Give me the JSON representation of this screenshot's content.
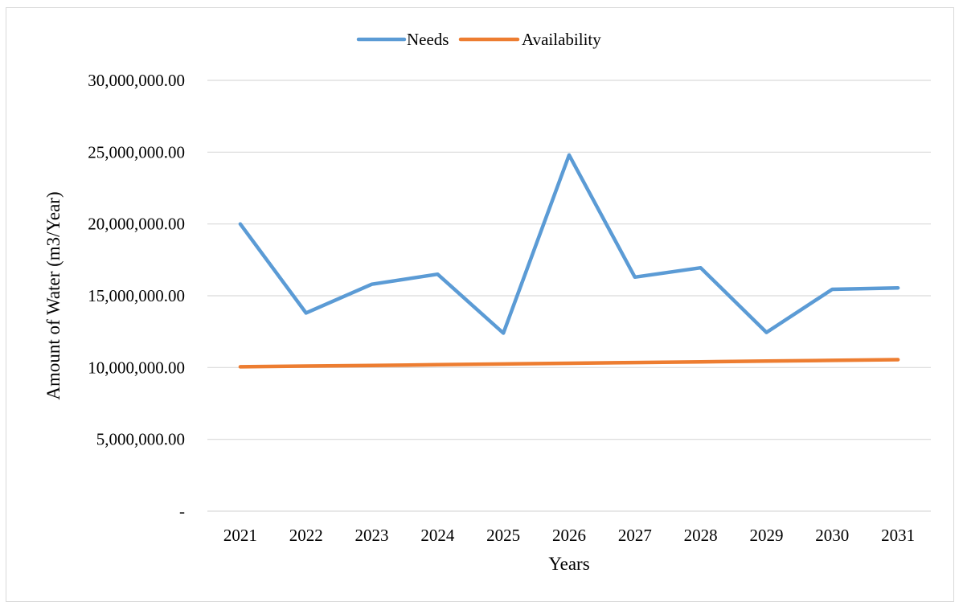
{
  "chart_data": {
    "type": "line",
    "title": "",
    "xlabel": "Years",
    "ylabel": "Amount of Water (m3/Year)",
    "categories": [
      "2021",
      "2022",
      "2023",
      "2024",
      "2025",
      "2026",
      "2027",
      "2028",
      "2029",
      "2030",
      "2031"
    ],
    "ylim": [
      0,
      30000000
    ],
    "y_ticks": [
      {
        "value": 0,
        "label": "-"
      },
      {
        "value": 5000000,
        "label": "5,000,000.00"
      },
      {
        "value": 10000000,
        "label": "10,000,000.00"
      },
      {
        "value": 15000000,
        "label": "15,000,000.00"
      },
      {
        "value": 20000000,
        "label": "20,000,000.00"
      },
      {
        "value": 25000000,
        "label": "25,000,000.00"
      },
      {
        "value": 30000000,
        "label": "30,000,000.00"
      }
    ],
    "grid": true,
    "legend_position": "top",
    "series": [
      {
        "name": "Needs",
        "color": "#5B9BD5",
        "values": [
          20000000,
          13800000,
          15800000,
          16500000,
          12400000,
          24800000,
          16300000,
          16950000,
          12450000,
          15450000,
          15550000
        ]
      },
      {
        "name": "Availability",
        "color": "#ED7D31",
        "values": [
          10050000,
          10100000,
          10150000,
          10200000,
          10250000,
          10300000,
          10350000,
          10400000,
          10450000,
          10500000,
          10550000
        ]
      }
    ]
  }
}
